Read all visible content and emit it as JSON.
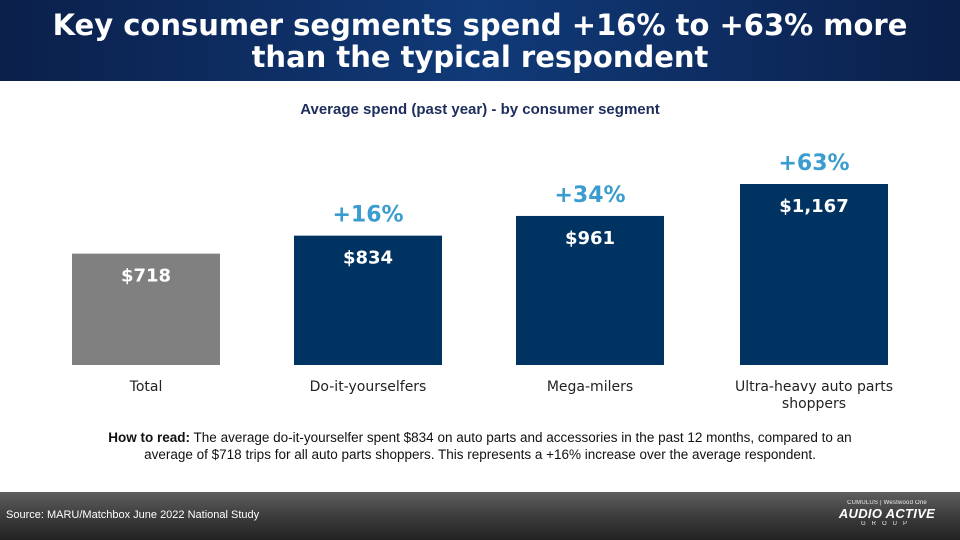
{
  "header": {
    "title": "Key consumer segments spend +16% to +63% more than the typical respondent"
  },
  "chart_data": {
    "type": "bar",
    "title": "Average spend (past year) - by consumer segment",
    "categories": [
      "Total",
      "Do-it-yourselfers",
      "Mega-milers",
      "Ultra-heavy auto parts shoppers"
    ],
    "values": [
      718,
      834,
      961,
      1167
    ],
    "value_labels": [
      "$718",
      "$834",
      "$961",
      "$1,167"
    ],
    "increase_labels": [
      "",
      "+16%",
      "+34%",
      "+63%"
    ],
    "colors": [
      "#808080",
      "#003262",
      "#003262",
      "#003262"
    ],
    "increase_color": "#3a9ccf",
    "ylim": [
      0,
      1167
    ],
    "grid": false
  },
  "note": {
    "lead": "How to read:",
    "text": " The average do-it-yourselfer spent $834 on auto parts and accessories in the past 12 months, compared to an average of $718 trips for all auto parts shoppers. This represents a +16% increase over the average respondent."
  },
  "footer": {
    "source": "Source: MARU/Matchbox June 2022 National Study",
    "brand_top": "CUMULUS | Westwood One",
    "brand_main": "AUDIO ACTIVE",
    "brand_sub": "GROUP"
  }
}
